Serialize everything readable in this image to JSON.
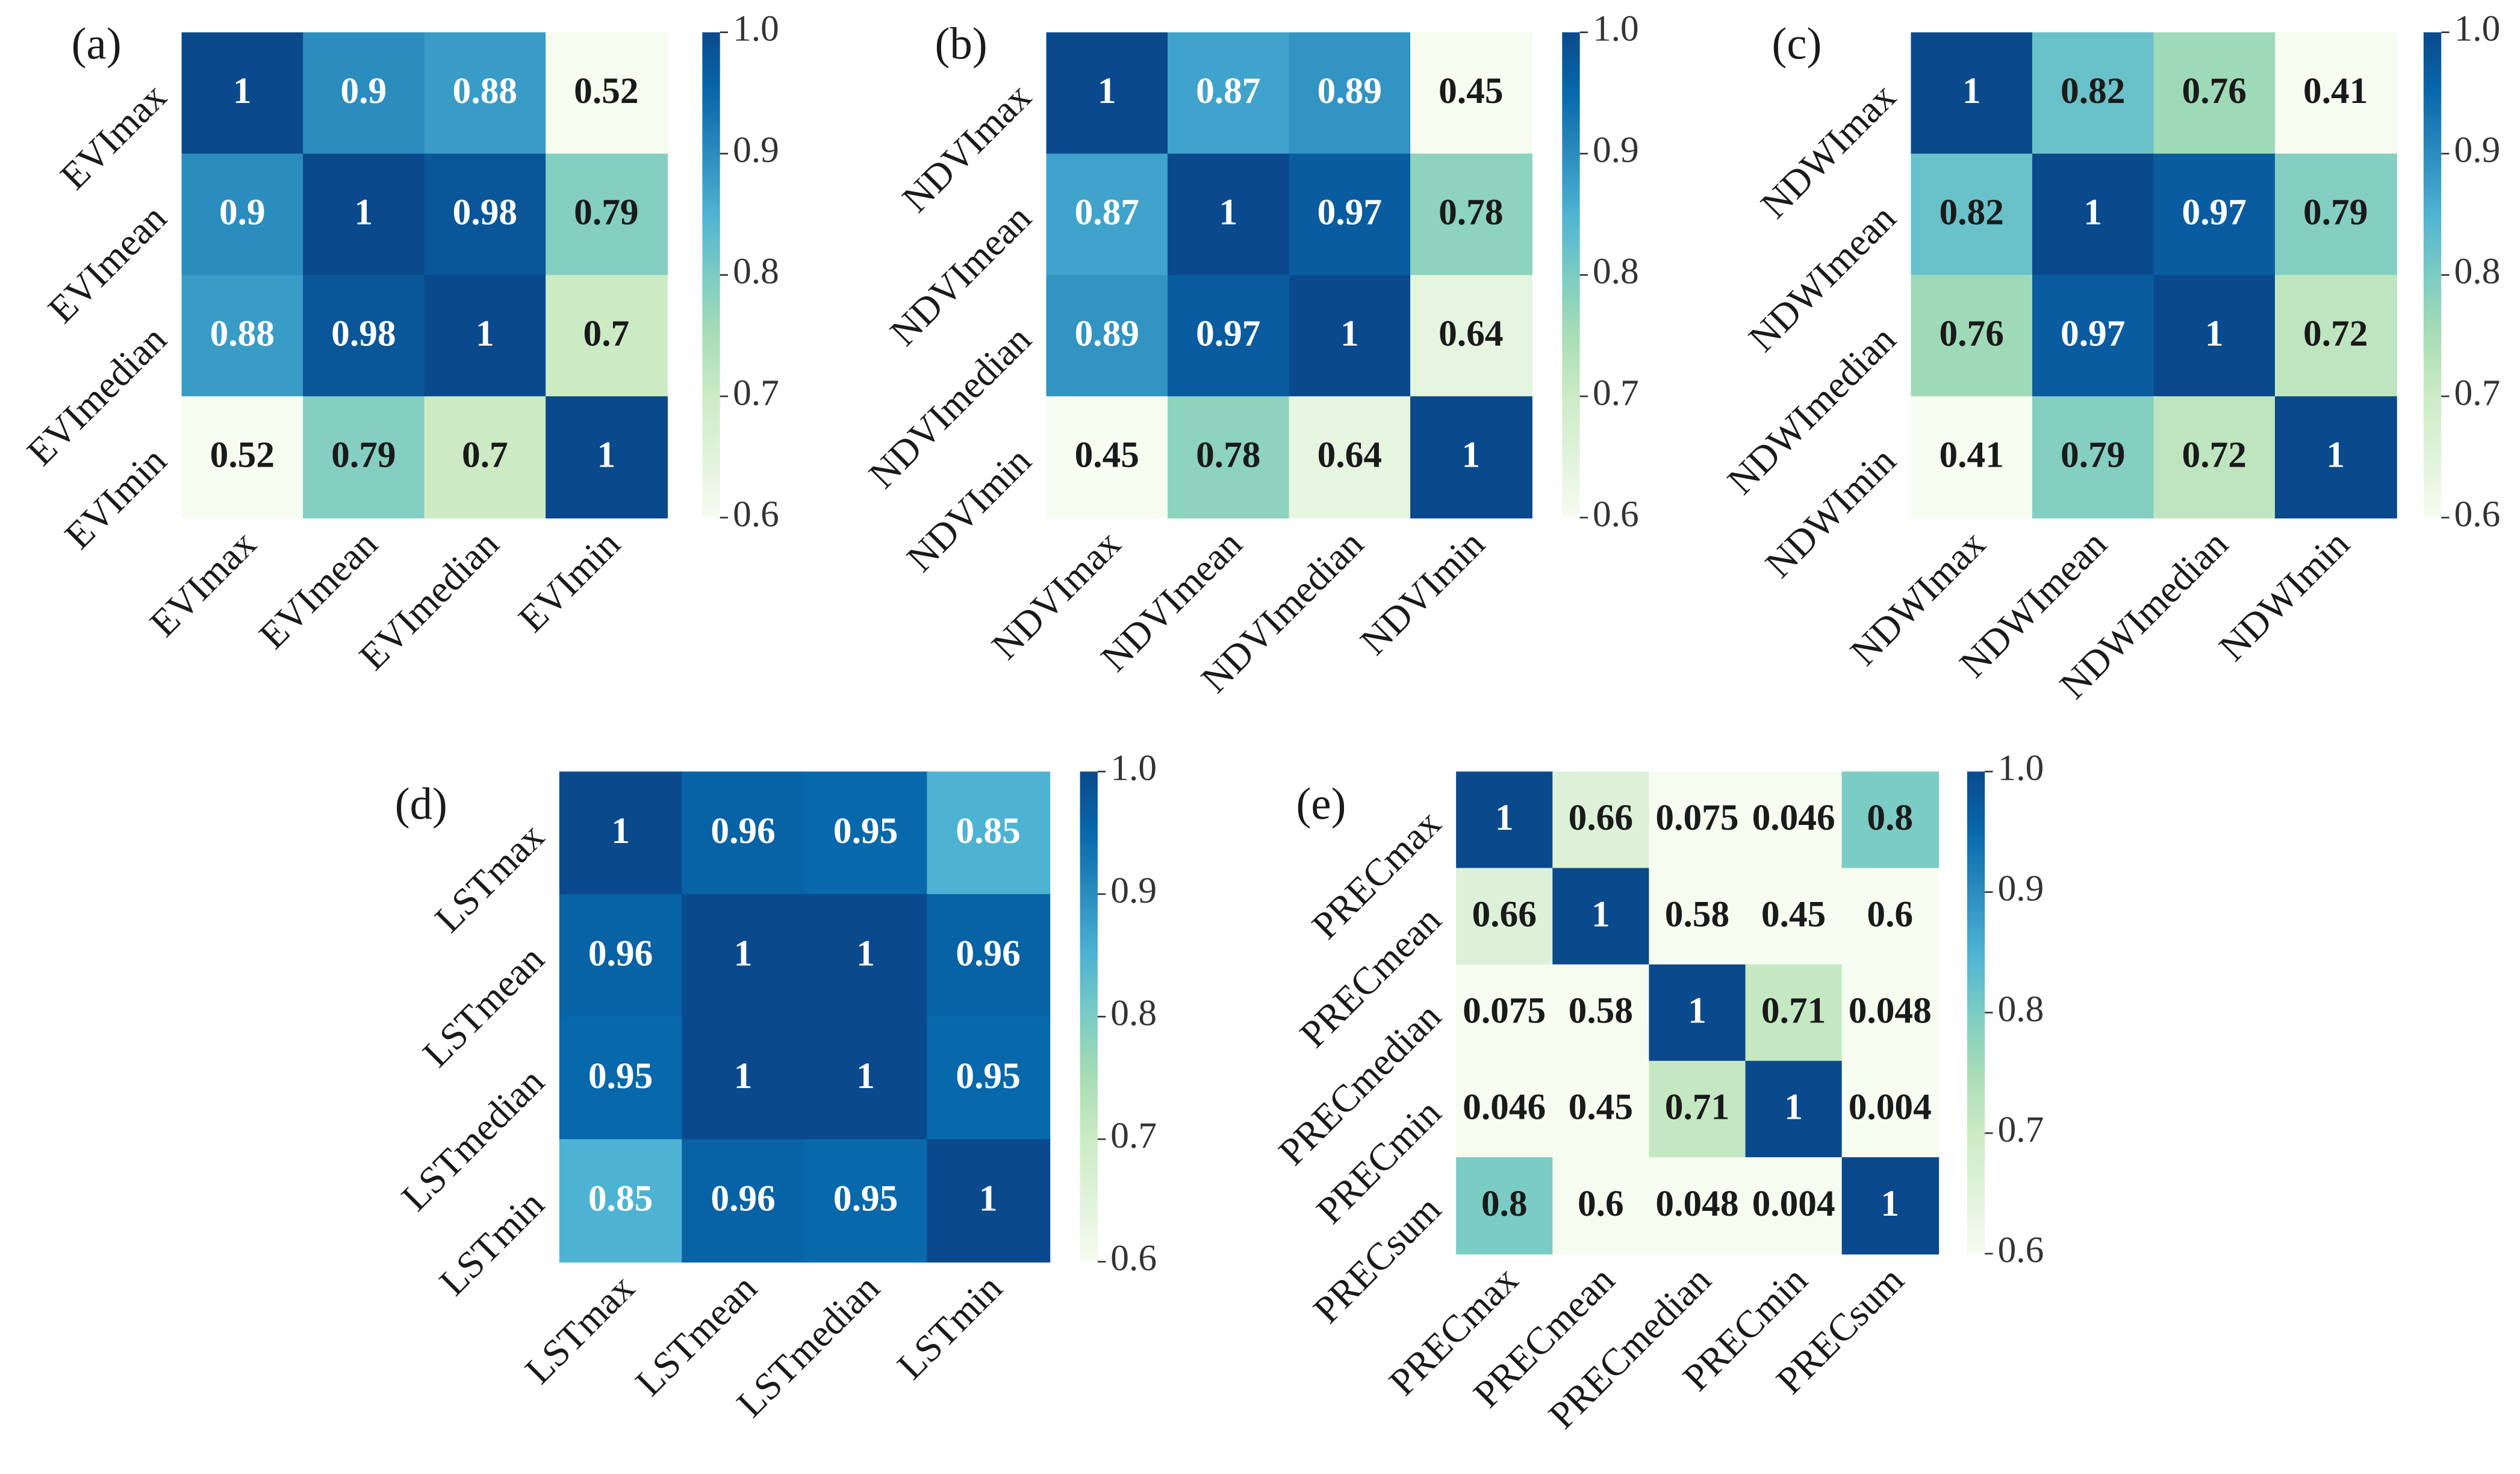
{
  "chart_data": [
    {
      "type": "heatmap",
      "title": "(a)",
      "cmap": "GnBu",
      "categories": [
        "EVImax",
        "EVImean",
        "EVImedian",
        "EVImin"
      ],
      "values": [
        [
          1,
          0.9,
          0.88,
          0.52
        ],
        [
          0.9,
          1,
          0.98,
          0.79
        ],
        [
          0.88,
          0.98,
          1,
          0.7
        ],
        [
          0.52,
          0.79,
          0.7,
          1
        ]
      ],
      "clim": [
        0.6,
        1.0
      ],
      "cticks": [
        0.6,
        0.7,
        0.8,
        0.9,
        {
          "value": 1.0,
          "label": "1.0"
        }
      ]
    },
    {
      "type": "heatmap",
      "title": "(b)",
      "cmap": "GnBu",
      "categories": [
        "NDVImax",
        "NDVImean",
        "NDVImedian",
        "NDVImin"
      ],
      "values": [
        [
          1,
          0.87,
          0.89,
          0.45
        ],
        [
          0.87,
          1,
          0.97,
          0.78
        ],
        [
          0.89,
          0.97,
          1,
          0.64
        ],
        [
          0.45,
          0.78,
          0.64,
          1
        ]
      ],
      "clim": [
        0.6,
        1.0
      ],
      "cticks": [
        0.6,
        0.7,
        0.8,
        0.9,
        {
          "value": 1.0,
          "label": "1.0"
        }
      ]
    },
    {
      "type": "heatmap",
      "title": "(c)",
      "cmap": "GnBu",
      "categories": [
        "NDWImax",
        "NDWImean",
        "NDWImedian",
        "NDWImin"
      ],
      "values": [
        [
          1,
          0.82,
          0.76,
          0.41
        ],
        [
          0.82,
          1,
          0.97,
          0.79
        ],
        [
          0.76,
          0.97,
          1,
          0.72
        ],
        [
          0.41,
          0.79,
          0.72,
          1
        ]
      ],
      "clim": [
        0.6,
        1.0
      ],
      "cticks": [
        0.6,
        0.7,
        0.8,
        0.9,
        {
          "value": 1.0,
          "label": "1.0"
        }
      ]
    },
    {
      "type": "heatmap",
      "title": "(d)",
      "cmap": "GnBu",
      "categories": [
        "LSTmax",
        "LSTmean",
        "LSTmedian",
        "LSTmin"
      ],
      "values": [
        [
          1,
          0.96,
          0.95,
          0.85
        ],
        [
          0.96,
          1,
          1,
          0.96
        ],
        [
          0.95,
          1,
          1,
          0.95
        ],
        [
          0.85,
          0.96,
          0.95,
          1
        ]
      ],
      "clim": [
        0.6,
        1.0
      ],
      "cticks": [
        0.6,
        0.7,
        0.8,
        0.9,
        {
          "value": 1.0,
          "label": "1.0"
        }
      ]
    },
    {
      "type": "heatmap",
      "title": "(e)",
      "cmap": "GnBu",
      "categories": [
        "PRECmax",
        "PRECmean",
        "PRECmedian",
        "PRECmin",
        "PRECsum"
      ],
      "values": [
        [
          1,
          0.66,
          0.075,
          0.046,
          0.8
        ],
        [
          0.66,
          1,
          0.58,
          0.45,
          0.6
        ],
        [
          0.075,
          0.58,
          1,
          0.71,
          0.048
        ],
        [
          0.046,
          0.45,
          0.71,
          1,
          0.004
        ],
        [
          0.8,
          0.6,
          0.048,
          0.004,
          1
        ]
      ],
      "clim": [
        0.6,
        1.0
      ],
      "cticks": [
        0.6,
        0.7,
        0.8,
        0.9,
        {
          "value": 1.0,
          "label": "1.0"
        }
      ]
    }
  ]
}
